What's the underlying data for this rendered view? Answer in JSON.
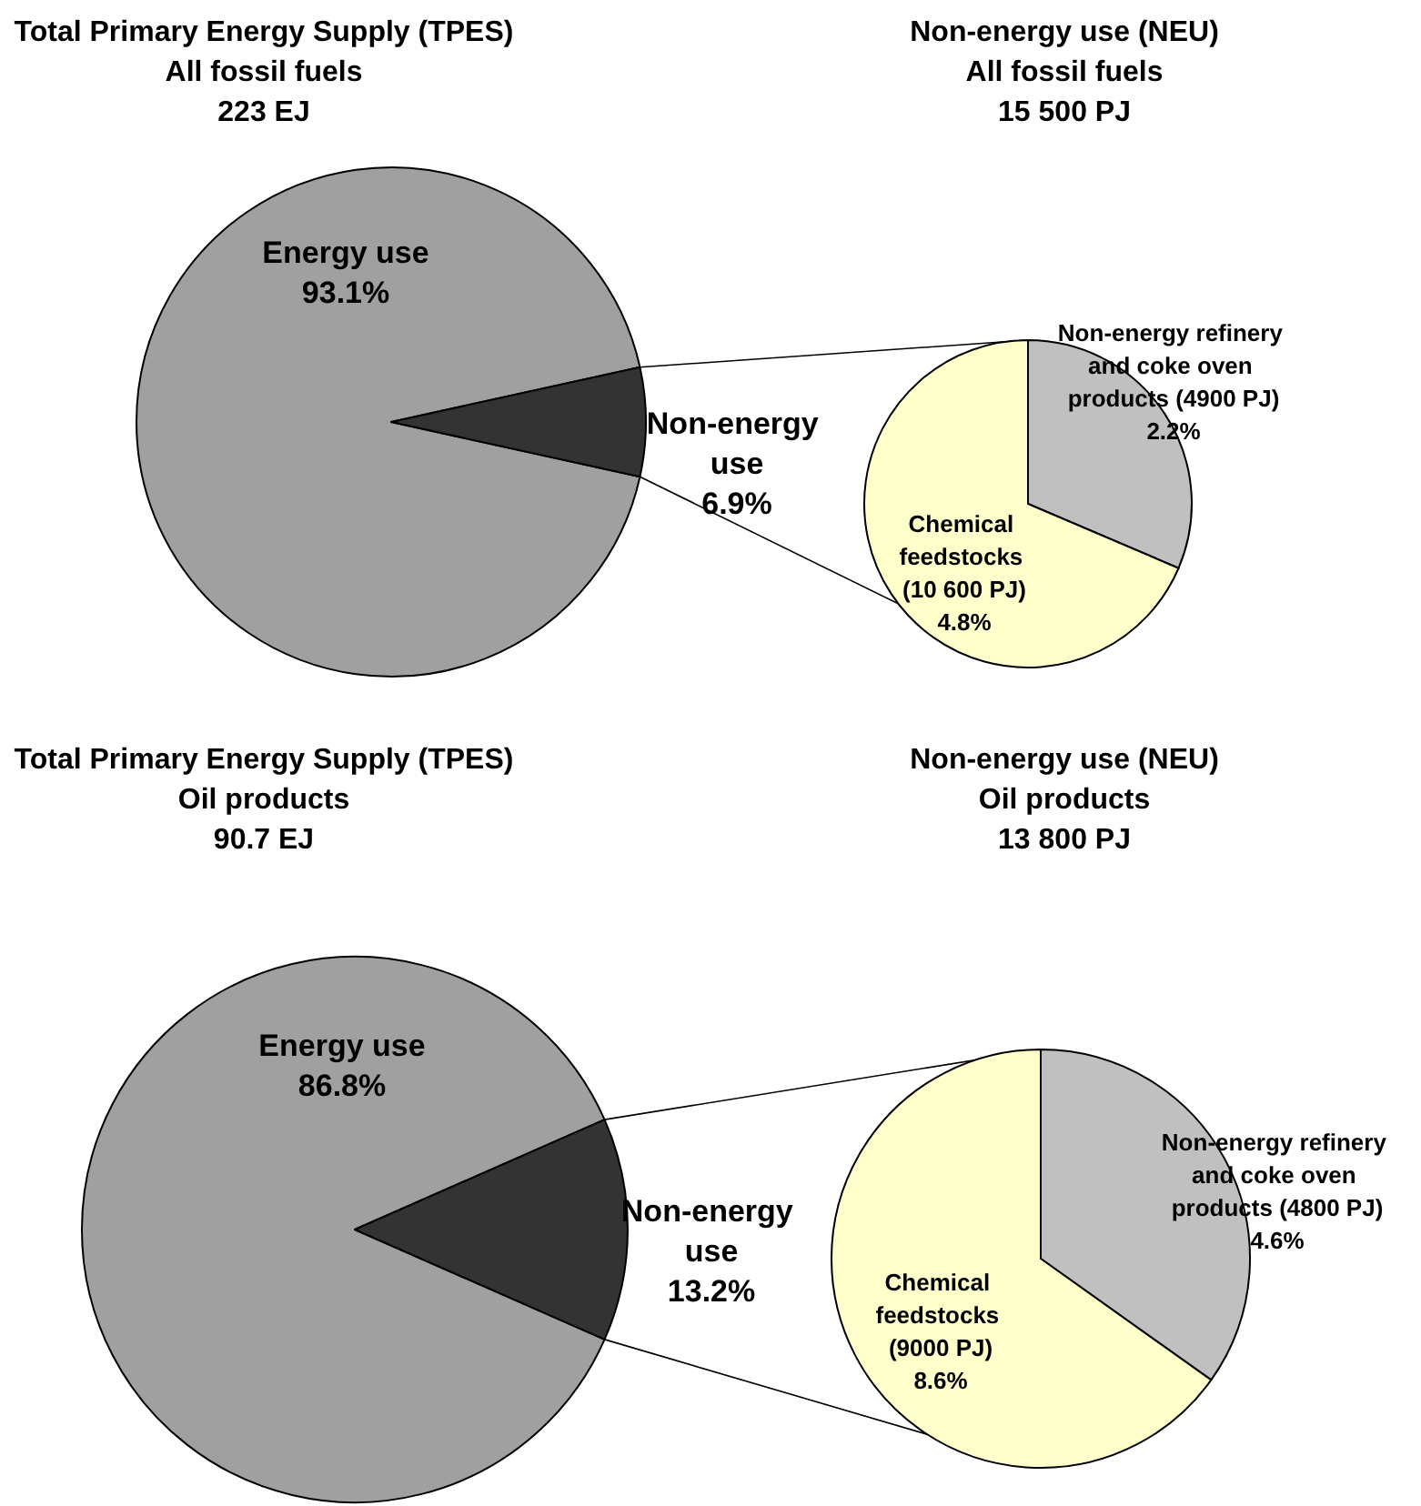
{
  "chart_data": [
    {
      "type": "pie",
      "title": "Total Primary Energy Supply (TPES)",
      "subtitle": "All fossil fuels\n223 EJ",
      "categories": [
        "Energy use",
        "Non-energy use"
      ],
      "values": [
        93.1,
        6.9
      ],
      "colors": [
        "#a0a0a0",
        "#333333"
      ],
      "value_labels": [
        "93.1%",
        "6.9%"
      ]
    },
    {
      "type": "pie",
      "title": "Non-energy use (NEU)",
      "subtitle": "All fossil fuels\n15 500 PJ",
      "categories": [
        "Non-energy refinery and coke oven products (4900 PJ)",
        "Chemical feedstocks (10 600 PJ)"
      ],
      "values": [
        2.2,
        4.8
      ],
      "colors": [
        "#c0c0c0",
        "#ffffcc"
      ],
      "value_labels": [
        "2.2%",
        "4.8%"
      ]
    },
    {
      "type": "pie",
      "title": "Total Primary Energy Supply (TPES)",
      "subtitle": "Oil products\n90.7 EJ",
      "categories": [
        "Energy use",
        "Non-energy use"
      ],
      "values": [
        86.8,
        13.2
      ],
      "colors": [
        "#a0a0a0",
        "#333333"
      ],
      "value_labels": [
        "86.8%",
        "13.2%"
      ]
    },
    {
      "type": "pie",
      "title": "Non-energy use (NEU)",
      "subtitle": "Oil products\n13 800 PJ",
      "categories": [
        "Non-energy refinery and coke oven products (4800 PJ)",
        "Chemical feedstocks (9000 PJ)"
      ],
      "values": [
        4.6,
        8.6
      ],
      "colors": [
        "#c0c0c0",
        "#ffffcc"
      ],
      "value_labels": [
        "4.6%",
        "8.6%"
      ]
    }
  ]
}
